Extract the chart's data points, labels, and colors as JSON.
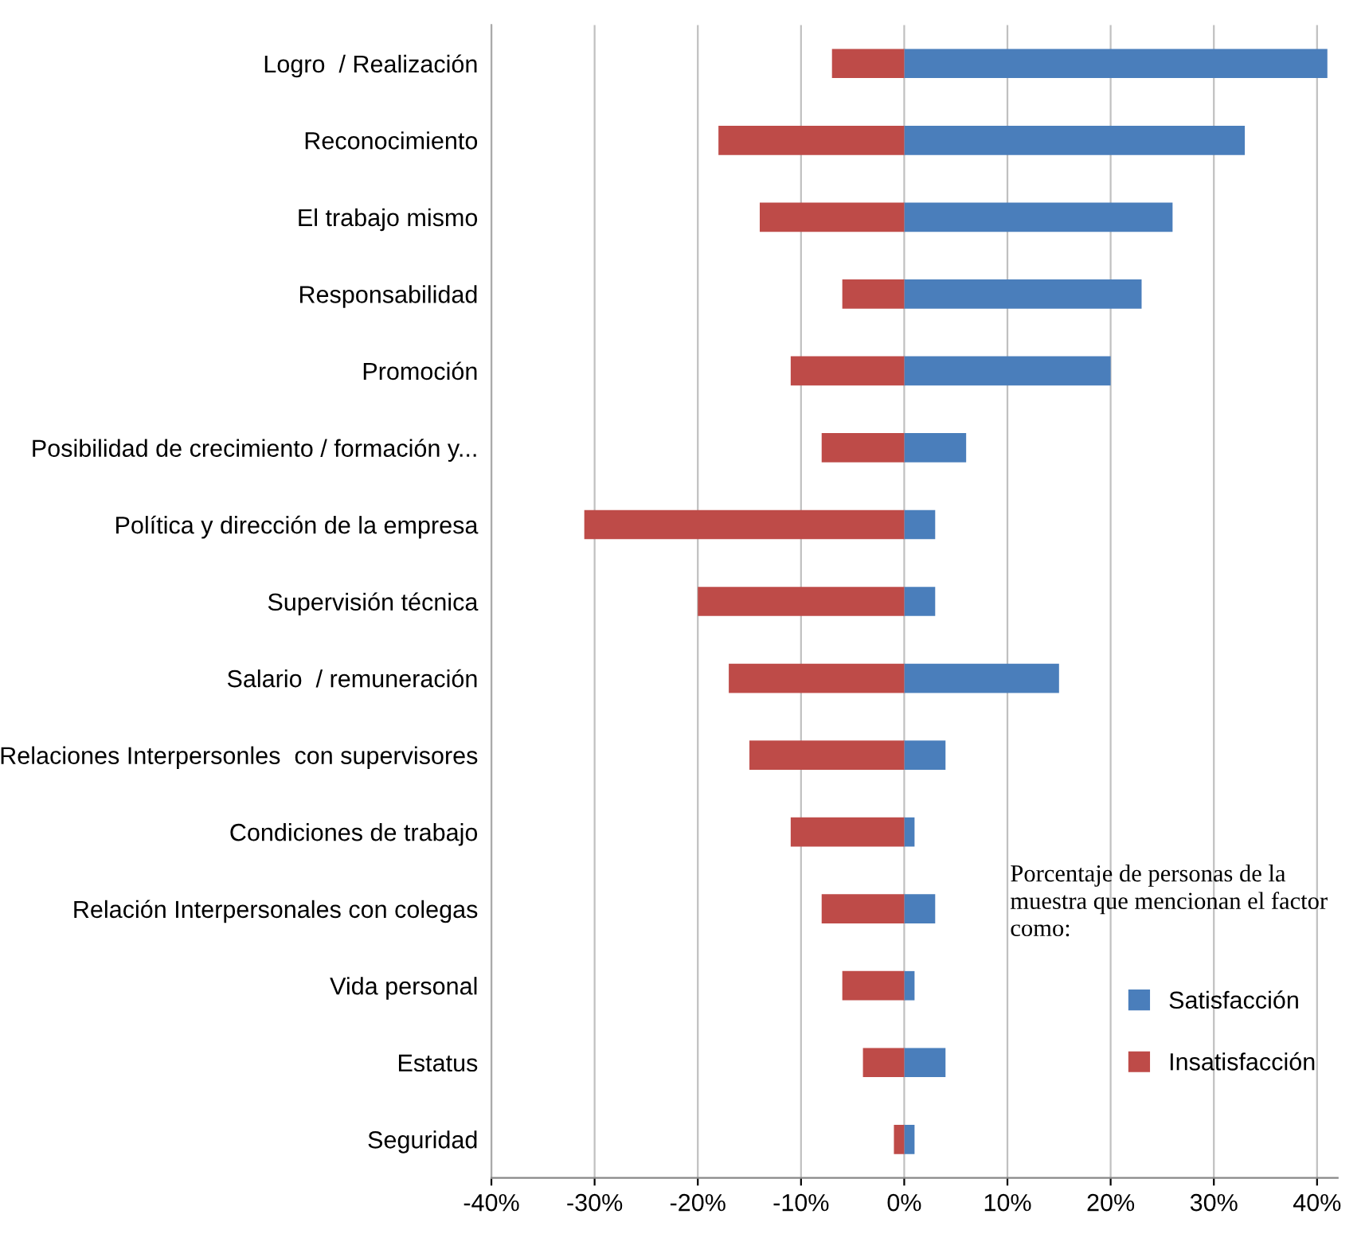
{
  "chart_data": {
    "type": "bar",
    "orientation": "horizontal",
    "stacked": true,
    "categories": [
      "Logro  / Realización",
      "Reconocimiento",
      "El trabajo mismo",
      "Responsabilidad",
      "Promoción",
      "Posibilidad de crecimiento / formación y...",
      "Política y dirección de la empresa",
      "Supervisión técnica",
      "Salario  / remuneración",
      "Relaciones Interpersonles  con supervisores",
      "Condiciones de trabajo",
      "Relación Interpersonales con colegas",
      "Vida personal",
      "Estatus",
      "Seguridad"
    ],
    "series": [
      {
        "name": "Satisfacción",
        "color": "#4a7ebb",
        "values": [
          41,
          33,
          26,
          23,
          20,
          6,
          3,
          3,
          15,
          4,
          1,
          3,
          1,
          4,
          1
        ]
      },
      {
        "name": "Insatisfacción",
        "color": "#be4b48",
        "values": [
          -7,
          -18,
          -14,
          -6,
          -11,
          -8,
          -31,
          -20,
          -17,
          -15,
          -11,
          -8,
          -6,
          -4,
          -1
        ]
      }
    ],
    "legend_title": "Porcentaje de personas de la muestra que mencionan el factor como:",
    "legend": "bottom right",
    "xlim": [
      -40,
      42
    ],
    "xticks": [
      {
        "value": -40,
        "label": "-40%"
      },
      {
        "value": -30,
        "label": "-30%"
      },
      {
        "value": -20,
        "label": "-20%"
      },
      {
        "value": -10,
        "label": "-10%"
      },
      {
        "value": 0,
        "label": "0%"
      },
      {
        "value": 10,
        "label": "10%"
      },
      {
        "value": 20,
        "label": "20%"
      },
      {
        "value": 30,
        "label": "30%"
      },
      {
        "value": 40,
        "label": "40%"
      }
    ],
    "grid": "x"
  }
}
